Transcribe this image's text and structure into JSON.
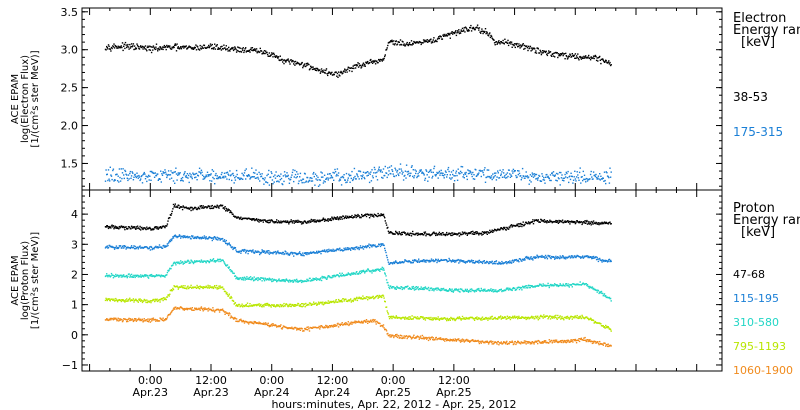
{
  "chart_data": [
    {
      "type": "scatter",
      "panel": "electron",
      "ylabel": [
        "ACE EPAM",
        "log(Electron Flux)",
        "[1/(cm²s ster MeV)]"
      ],
      "ylim": [
        1.15,
        3.55
      ],
      "yticks": [
        1.5,
        2.0,
        2.5,
        3.0,
        3.5
      ],
      "ytick_labels": [
        "1.5",
        "2.0",
        "2.5",
        "3.0",
        "3.5"
      ],
      "legend_title": [
        "Electron",
        "Energy range",
        "[keV]"
      ],
      "series": [
        {
          "name": "38-53",
          "color": "#000000",
          "points": [
            [
              -9,
              3.05
            ],
            [
              -4,
              3.05
            ],
            [
              0,
              3.02
            ],
            [
              4,
              3.04
            ],
            [
              8,
              3.03
            ],
            [
              12,
              3.05
            ],
            [
              16,
              3.02
            ],
            [
              20,
              3.0
            ],
            [
              24,
              2.95
            ],
            [
              26,
              2.86
            ],
            [
              30,
              2.82
            ],
            [
              34,
              2.72
            ],
            [
              37,
              2.68
            ],
            [
              40,
              2.78
            ],
            [
              44,
              2.84
            ],
            [
              46,
              2.88
            ],
            [
              47,
              3.12
            ],
            [
              50,
              3.08
            ],
            [
              54,
              3.1
            ],
            [
              58,
              3.18
            ],
            [
              62,
              3.28
            ],
            [
              64,
              3.3
            ],
            [
              66,
              3.25
            ],
            [
              68,
              3.12
            ],
            [
              72,
              3.08
            ],
            [
              76,
              3.0
            ],
            [
              80,
              2.95
            ],
            [
              84,
              2.92
            ],
            [
              88,
              2.9
            ],
            [
              91,
              2.83
            ]
          ]
        },
        {
          "name": "175-315",
          "color": "#1a7fd6",
          "points": [
            [
              -9,
              1.35
            ],
            [
              0,
              1.35
            ],
            [
              10,
              1.35
            ],
            [
              20,
              1.34
            ],
            [
              30,
              1.3
            ],
            [
              40,
              1.33
            ],
            [
              47,
              1.4
            ],
            [
              55,
              1.38
            ],
            [
              65,
              1.37
            ],
            [
              75,
              1.34
            ],
            [
              85,
              1.33
            ],
            [
              91,
              1.35
            ]
          ]
        }
      ]
    },
    {
      "type": "scatter",
      "panel": "proton",
      "ylabel": [
        "ACE EPAM",
        "log(Proton Flux)",
        "[1/(cm²s ster MeV)]"
      ],
      "ylim": [
        -1.2,
        4.8
      ],
      "yticks": [
        -1,
        0,
        1,
        2,
        3,
        4
      ],
      "ytick_labels": [
        "−1",
        "0",
        "1",
        "2",
        "3",
        "4"
      ],
      "legend_title": [
        "Proton",
        "Energy range",
        "[keV]"
      ],
      "series": [
        {
          "name": "47-68",
          "color": "#000000",
          "points": [
            [
              -9,
              3.6
            ],
            [
              0,
              3.55
            ],
            [
              3,
              3.6
            ],
            [
              4.5,
              4.3
            ],
            [
              8,
              4.2
            ],
            [
              14,
              4.3
            ],
            [
              17,
              3.9
            ],
            [
              22,
              3.8
            ],
            [
              30,
              3.75
            ],
            [
              40,
              3.95
            ],
            [
              46,
              4.0
            ],
            [
              47,
              3.4
            ],
            [
              56,
              3.35
            ],
            [
              66,
              3.4
            ],
            [
              76,
              3.8
            ],
            [
              86,
              3.75
            ],
            [
              91,
              3.7
            ]
          ]
        },
        {
          "name": "115-195",
          "color": "#1a7fd6",
          "points": [
            [
              -9,
              2.95
            ],
            [
              0,
              2.9
            ],
            [
              3,
              2.95
            ],
            [
              4.5,
              3.3
            ],
            [
              14,
              3.2
            ],
            [
              17,
              2.8
            ],
            [
              30,
              2.7
            ],
            [
              46,
              3.0
            ],
            [
              47,
              2.4
            ],
            [
              56,
              2.5
            ],
            [
              70,
              2.4
            ],
            [
              76,
              2.6
            ],
            [
              86,
              2.6
            ],
            [
              91,
              2.45
            ]
          ]
        },
        {
          "name": "310-580",
          "color": "#22d6c6",
          "points": [
            [
              -9,
              2.0
            ],
            [
              0,
              1.95
            ],
            [
              3,
              2.0
            ],
            [
              4.5,
              2.4
            ],
            [
              14,
              2.5
            ],
            [
              17,
              1.9
            ],
            [
              30,
              1.8
            ],
            [
              46,
              2.2
            ],
            [
              47,
              1.6
            ],
            [
              60,
              1.5
            ],
            [
              70,
              1.5
            ],
            [
              76,
              1.65
            ],
            [
              86,
              1.7
            ],
            [
              91,
              1.2
            ]
          ]
        },
        {
          "name": "795-1193",
          "color": "#b8e600",
          "points": [
            [
              -9,
              1.2
            ],
            [
              0,
              1.15
            ],
            [
              3,
              1.2
            ],
            [
              4.5,
              1.6
            ],
            [
              14,
              1.6
            ],
            [
              17,
              1.0
            ],
            [
              30,
              1.0
            ],
            [
              46,
              1.3
            ],
            [
              47,
              0.6
            ],
            [
              60,
              0.55
            ],
            [
              76,
              0.6
            ],
            [
              86,
              0.6
            ],
            [
              91,
              0.2
            ]
          ]
        },
        {
          "name": "1060-1900",
          "color": "#f08a1c",
          "points": [
            [
              -9,
              0.55
            ],
            [
              0,
              0.5
            ],
            [
              3,
              0.55
            ],
            [
              4.5,
              0.9
            ],
            [
              14,
              0.85
            ],
            [
              17,
              0.5
            ],
            [
              30,
              0.2
            ],
            [
              44,
              0.5
            ],
            [
              46,
              0.3
            ],
            [
              47,
              0.0
            ],
            [
              60,
              -0.15
            ],
            [
              70,
              -0.25
            ],
            [
              80,
              -0.2
            ],
            [
              86,
              -0.15
            ],
            [
              91,
              -0.35
            ]
          ]
        }
      ]
    }
  ],
  "x_axis": {
    "xlim": [
      -13.5,
      113
    ],
    "tick_labels": [
      {
        "hours": 0,
        "time": "0:00",
        "date": "Apr.23"
      },
      {
        "hours": 12,
        "time": "12:00",
        "date": "Apr.23"
      },
      {
        "hours": 24,
        "time": "0:00",
        "date": "Apr.24"
      },
      {
        "hours": 36,
        "time": "12:00",
        "date": "Apr.24"
      },
      {
        "hours": 48,
        "time": "0:00",
        "date": "Apr.25"
      },
      {
        "hours": 60,
        "time": "12:00",
        "date": "Apr.25"
      }
    ],
    "xlabel": "hours:minutes, Apr. 22, 2012 - Apr. 25, 2012"
  }
}
